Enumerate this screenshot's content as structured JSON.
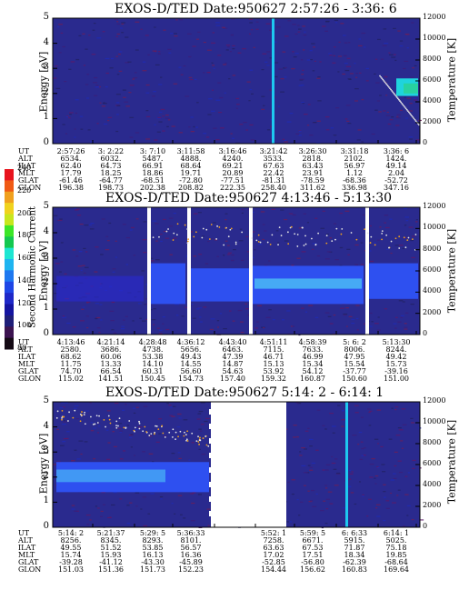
{
  "colorbar": {
    "label": "Second Harmonic Current",
    "ticks": [
      "240",
      "220",
      "200",
      "180",
      "160",
      "140",
      "120",
      "100",
      "80"
    ],
    "colors": [
      "#e8141e",
      "#f05a14",
      "#f0a01e",
      "#f0d21e",
      "#c8e61e",
      "#3ce628",
      "#14c850",
      "#1ee6d2",
      "#1eb4f0",
      "#1e78f0",
      "#1e46e6",
      "#1e28c8",
      "#1414a0",
      "#1e1e78",
      "#3c1450",
      "#140a14"
    ]
  },
  "chart_data": [
    {
      "type": "heatmap",
      "title": "EXOS-D/TED   Date:950627  2:57:26 - 3:36: 6",
      "ylabel": "Energy [eV]",
      "ylabel_right": "Temperature [K]",
      "ylim": [
        0,
        5
      ],
      "ylim_right": [
        0,
        12000
      ],
      "yticks": [
        "0",
        "1",
        "2",
        "3",
        "4",
        "5"
      ],
      "yticks_right": [
        "0",
        "2000",
        "4000",
        "6000",
        "8000",
        "10000",
        "12000"
      ],
      "ephemeris": [
        [
          "UT",
          "2:57:26",
          "3: 2:22",
          "3: 7:10",
          "3:11:58",
          "3:16:46",
          "3:21:42",
          "3:26:30",
          "3:31:18",
          "3:36: 6"
        ],
        [
          "ALT",
          "6534.",
          "6032.",
          "5487.",
          "4888.",
          "4240.",
          "3533.",
          "2818.",
          "2102.",
          "1424."
        ],
        [
          "ILAT",
          "62.40",
          "64.73",
          "66.91",
          "68.64",
          "69.21",
          "67.63",
          "63.43",
          "56.97",
          "49.14"
        ],
        [
          "MLT",
          "17.79",
          "18.25",
          "18.86",
          "19.71",
          "20.89",
          "22.42",
          "23.91",
          "1.12",
          "2.04"
        ],
        [
          "GLAT",
          "-61.46",
          "-64.77",
          "-68.51",
          "-72.80",
          "-77.51",
          "-81.31",
          "-78.59",
          "-68.36",
          "-52.72"
        ],
        [
          "GLON",
          "196.38",
          "198.73",
          "202.38",
          "208.82",
          "222.35",
          "258.40",
          "311.62",
          "336.98",
          "347.16"
        ]
      ]
    },
    {
      "type": "heatmap",
      "title": "EXOS-D/TED   Date:950627  4:13:46 - 5:13:30",
      "ylabel": "Energy [eV]",
      "ylabel_right": "Temperature [K]",
      "ylim": [
        0,
        5
      ],
      "ylim_right": [
        0,
        12000
      ],
      "yticks": [
        "0",
        "1",
        "2",
        "3",
        "4",
        "5"
      ],
      "yticks_right": [
        "0",
        "2000",
        "4000",
        "6000",
        "8000",
        "10000",
        "12000"
      ],
      "ephemeris": [
        [
          "UT",
          "4:13:46",
          "4:21:14",
          "4:28:48",
          "4:36:12",
          "4:43:40",
          "4:51:11",
          "4:58:39",
          "5: 6: 2",
          "5:13:30"
        ],
        [
          "ALT",
          "2580.",
          "3686.",
          "4738.",
          "5656.",
          "6463.",
          "7115.",
          "7633.",
          "8006.",
          "8244."
        ],
        [
          "ILAT",
          "68.62",
          "60.06",
          "53.38",
          "49.43",
          "47.39",
          "46.71",
          "46.99",
          "47.95",
          "49.42"
        ],
        [
          "MLT",
          "11.75",
          "13.33",
          "14.10",
          "14.55",
          "14.87",
          "15.13",
          "15.34",
          "15.54",
          "15.73"
        ],
        [
          "GLAT",
          "74.70",
          "66.54",
          "60.31",
          "56.60",
          "54.63",
          "53.92",
          "54.12",
          "-37.77",
          "-39.16"
        ],
        [
          "GLON",
          "115.02",
          "141.51",
          "150.45",
          "154.73",
          "157.40",
          "159.32",
          "160.87",
          "150.60",
          "151.00"
        ]
      ]
    },
    {
      "type": "heatmap",
      "title": "EXOS-D/TED   Date:950627  5:14: 2 - 6:14: 1",
      "ylabel": "Energy [eV]",
      "ylabel_right": "Temperature [K]",
      "ylim": [
        0,
        5
      ],
      "ylim_right": [
        0,
        12000
      ],
      "yticks": [
        "0",
        "1",
        "2",
        "3",
        "4",
        "5"
      ],
      "yticks_right": [
        "0",
        "2000",
        "4000",
        "6000",
        "8000",
        "10000",
        "12000"
      ],
      "ephemeris": [
        [
          "UT",
          "5:14: 2",
          "5:21:37",
          "5:29: 5",
          "5:36:33",
          "",
          "5:52: 1",
          "5:59: 5",
          "6: 6:33",
          "6:14: 1"
        ],
        [
          "ALT",
          "8256.",
          "8345.",
          "8293.",
          "8101.",
          "",
          "7258.",
          "6671.",
          "5915.",
          "5025."
        ],
        [
          "ILAT",
          "49.55",
          "51.52",
          "53.85",
          "56.57",
          "",
          "63.63",
          "67.53",
          "71.87",
          "75.18"
        ],
        [
          "MLT",
          "15.74",
          "15.93",
          "16.13",
          "16.36",
          "",
          "17.02",
          "17.51",
          "18.34",
          "19.85"
        ],
        [
          "GLAT",
          "-39.28",
          "-41.12",
          "-43.30",
          "-45.89",
          "",
          "-52.85",
          "-56.80",
          "-62.39",
          "-68.64"
        ],
        [
          "GLON",
          "151.03",
          "151.36",
          "151.73",
          "152.23",
          "",
          "154.44",
          "156.62",
          "160.83",
          "169.64"
        ]
      ]
    }
  ]
}
